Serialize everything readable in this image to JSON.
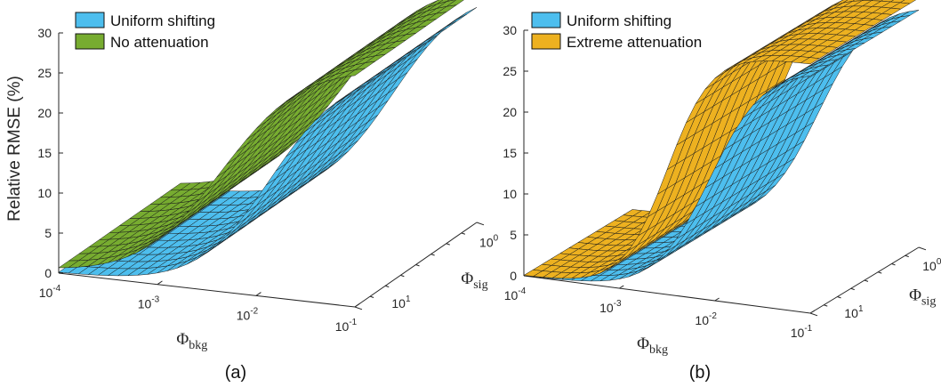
{
  "chart_data": [
    {
      "type": "surface",
      "caption": "(a)",
      "zlabel": "Relative RMSE (%)",
      "xlabel": "Φ",
      "xlabel_sub": "bkg",
      "ylabel": "Φ",
      "ylabel_sub": "sig",
      "xlim": [
        0.0001,
        0.1
      ],
      "zlim": [
        0,
        30
      ],
      "z_ticks": [
        0,
        5,
        10,
        15,
        20,
        25,
        30
      ],
      "x_ticks": [
        {
          "base": "10",
          "exp": "-4"
        },
        {
          "base": "10",
          "exp": "-3"
        },
        {
          "base": "10",
          "exp": "-2"
        },
        {
          "base": "10",
          "exp": "-1"
        }
      ],
      "y_ticks": [
        {
          "base": "10",
          "exp": "1"
        },
        {
          "base": "10",
          "exp": "0"
        }
      ],
      "legend": [
        {
          "label": "Uniform shifting",
          "color": "#4dbeee"
        },
        {
          "label": "No attenuation",
          "color": "#77ac30"
        }
      ],
      "series": [
        {
          "name": "Uniform shifting",
          "color": "#4dbeee",
          "plateau": 29.8,
          "midpoint_log10_bkg": -1.85,
          "steepness": 2.6
        },
        {
          "name": "No attenuation",
          "color": "#77ac30",
          "plateau": 30.2,
          "midpoint_log10_bkg": -2.35,
          "steepness": 2.3
        }
      ]
    },
    {
      "type": "surface",
      "caption": "(b)",
      "zlabel": "",
      "xlabel": "Φ",
      "xlabel_sub": "bkg",
      "ylabel": "Φ",
      "ylabel_sub": "sig",
      "xlim": [
        0.0001,
        0.1
      ],
      "zlim": [
        0,
        30
      ],
      "z_ticks": [
        0,
        5,
        10,
        15,
        20,
        25,
        30
      ],
      "x_ticks": [
        {
          "base": "10",
          "exp": "-4"
        },
        {
          "base": "10",
          "exp": "-3"
        },
        {
          "base": "10",
          "exp": "-2"
        },
        {
          "base": "10",
          "exp": "-1"
        }
      ],
      "y_ticks": [
        {
          "base": "10",
          "exp": "1"
        },
        {
          "base": "10",
          "exp": "0"
        }
      ],
      "legend": [
        {
          "label": "Uniform shifting",
          "color": "#4dbeee"
        },
        {
          "label": "Extreme attenuation",
          "color": "#edb120"
        }
      ],
      "series": [
        {
          "name": "Uniform shifting",
          "color": "#4dbeee",
          "plateau": 29.8,
          "midpoint_log10_bkg": -2.05,
          "steepness": 3.4
        },
        {
          "name": "Extreme attenuation",
          "color": "#edb120",
          "plateau": 30.5,
          "midpoint_log10_bkg": -2.5,
          "steepness": 4.2
        }
      ]
    }
  ]
}
